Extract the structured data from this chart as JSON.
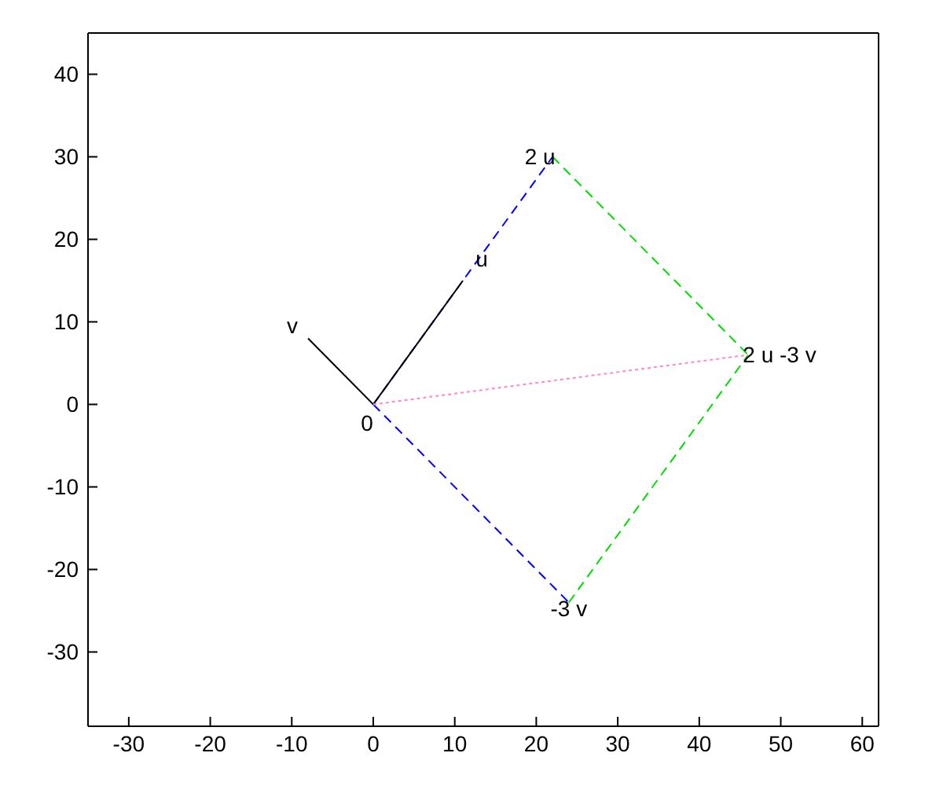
{
  "chart_data": {
    "type": "line",
    "xlim": [
      -35,
      62
    ],
    "ylim": [
      -39,
      45
    ],
    "xticks": [
      -30,
      -20,
      -10,
      0,
      10,
      20,
      30,
      40,
      50,
      60
    ],
    "yticks": [
      -30,
      -20,
      -10,
      0,
      10,
      20,
      30,
      40
    ],
    "grid": false,
    "marker": "none",
    "series": [
      {
        "color": "#0000ff",
        "line_style": "dashed",
        "x": [
          0,
          22
        ],
        "values": [
          0,
          30
        ]
      },
      {
        "color": "#0000ff",
        "line_style": "dashed",
        "x": [
          0,
          24
        ],
        "values": [
          0,
          -24
        ]
      },
      {
        "color": "#00dd00",
        "line_style": "dashed",
        "x": [
          22,
          46
        ],
        "values": [
          30,
          6
        ]
      },
      {
        "color": "#00dd00",
        "line_style": "dashed",
        "x": [
          24,
          46
        ],
        "values": [
          -24,
          6
        ]
      },
      {
        "color": "#000000",
        "line_style": "solid",
        "x": [
          0,
          11
        ],
        "values": [
          0,
          15
        ]
      },
      {
        "color": "#000000",
        "line_style": "solid",
        "x": [
          0,
          -8
        ],
        "values": [
          0,
          8
        ]
      },
      {
        "color": "#ff88cc",
        "line_style": "dotted",
        "x": [
          0,
          46
        ],
        "values": [
          0,
          6
        ]
      }
    ],
    "annotations": [
      {
        "text": "0",
        "x": 0,
        "y": 0
      },
      {
        "text": "u",
        "x": 11,
        "y": 15
      },
      {
        "text": "v",
        "x": -8,
        "y": 8
      },
      {
        "text": "2 u",
        "x": 22,
        "y": 30
      },
      {
        "text": "-3 v",
        "x": 24,
        "y": -24
      },
      {
        "text": "2 u -3 v",
        "x": 46,
        "y": 6
      }
    ]
  }
}
